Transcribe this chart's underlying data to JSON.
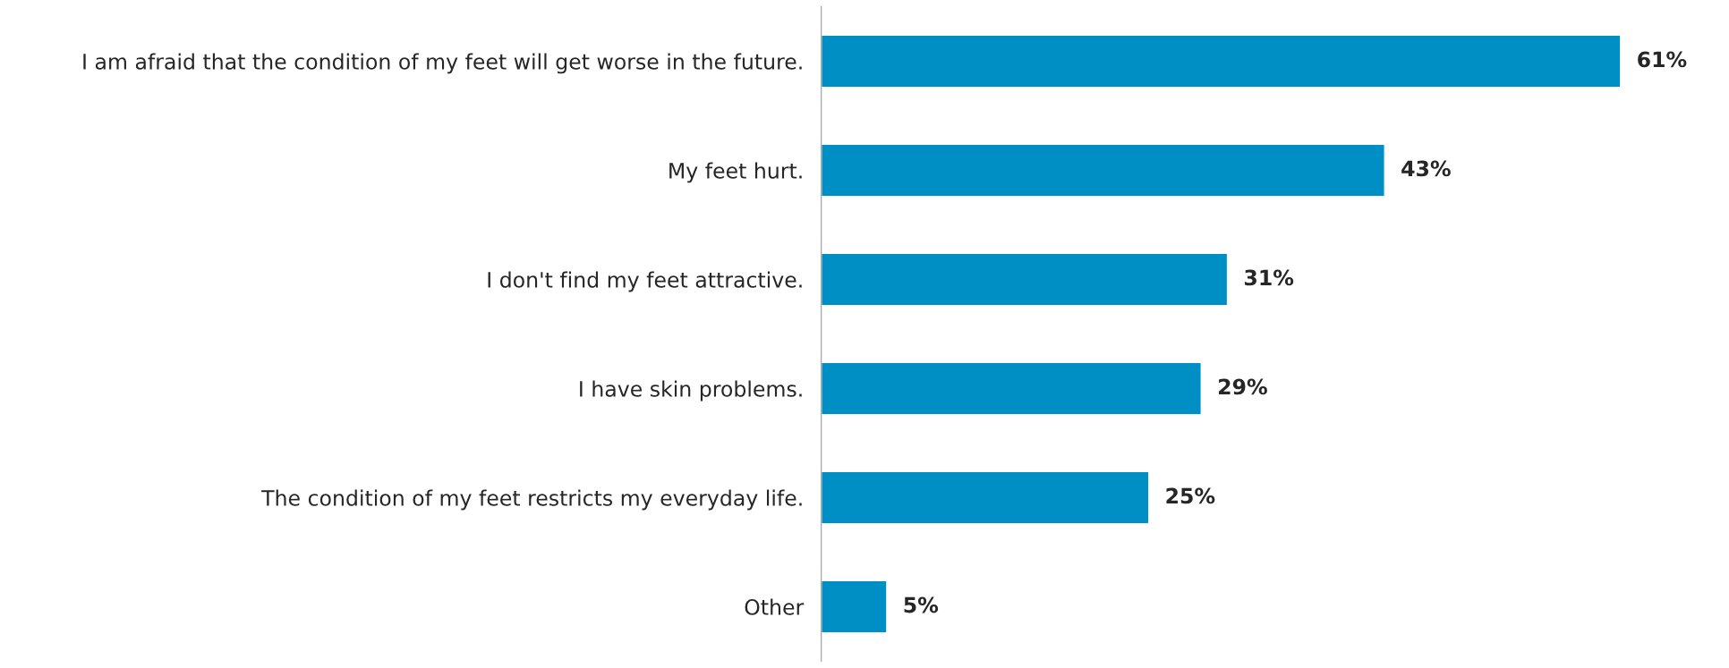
{
  "chart_data": {
    "type": "bar",
    "orientation": "horizontal",
    "categories": [
      "I am afraid that the condition of my feet will get worse in the future.",
      "My feet hurt.",
      "I don't find my feet attractive.",
      "I have skin problems.",
      "The condition of my feet restricts my everyday life.",
      "Other"
    ],
    "values": [
      61,
      43,
      31,
      29,
      25,
      5
    ],
    "value_labels": [
      "61%",
      "43%",
      "31%",
      "29%",
      "25%",
      "5%"
    ],
    "color": "#008fc5",
    "grid": false,
    "legend": false
  }
}
